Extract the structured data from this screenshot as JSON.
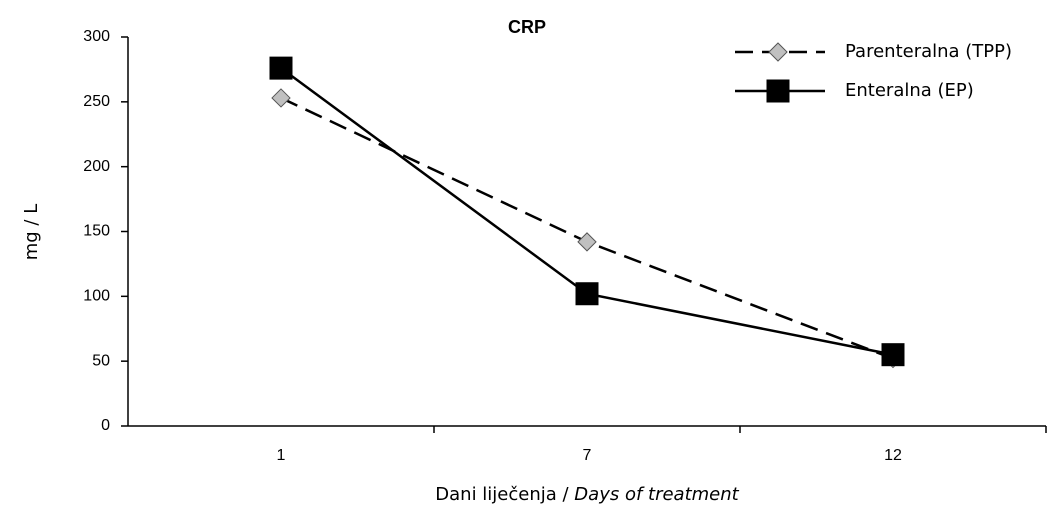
{
  "chart_data": {
    "type": "line",
    "title": "CRP",
    "y_label": "mg / L",
    "x_label": "Dani liječenja / ",
    "x_label_italic": "Days of treatment",
    "categories": [
      "1",
      "7",
      "12"
    ],
    "series": [
      {
        "name": "Parenteralna (TPP)",
        "color": "#000000",
        "marker_color": "#c0c0c0",
        "marker": "diamond",
        "line_style": "dashed",
        "values": [
          253,
          142,
          52
        ]
      },
      {
        "name": "Enteralna (EP)",
        "color": "#000000",
        "marker_color": "#000000",
        "marker": "square",
        "line_style": "solid",
        "values": [
          276,
          102,
          55
        ]
      }
    ],
    "ylim": [
      0,
      300
    ],
    "yticks": [
      0,
      50,
      100,
      150,
      200,
      250,
      300
    ],
    "grid": false,
    "legend": "top-right"
  }
}
